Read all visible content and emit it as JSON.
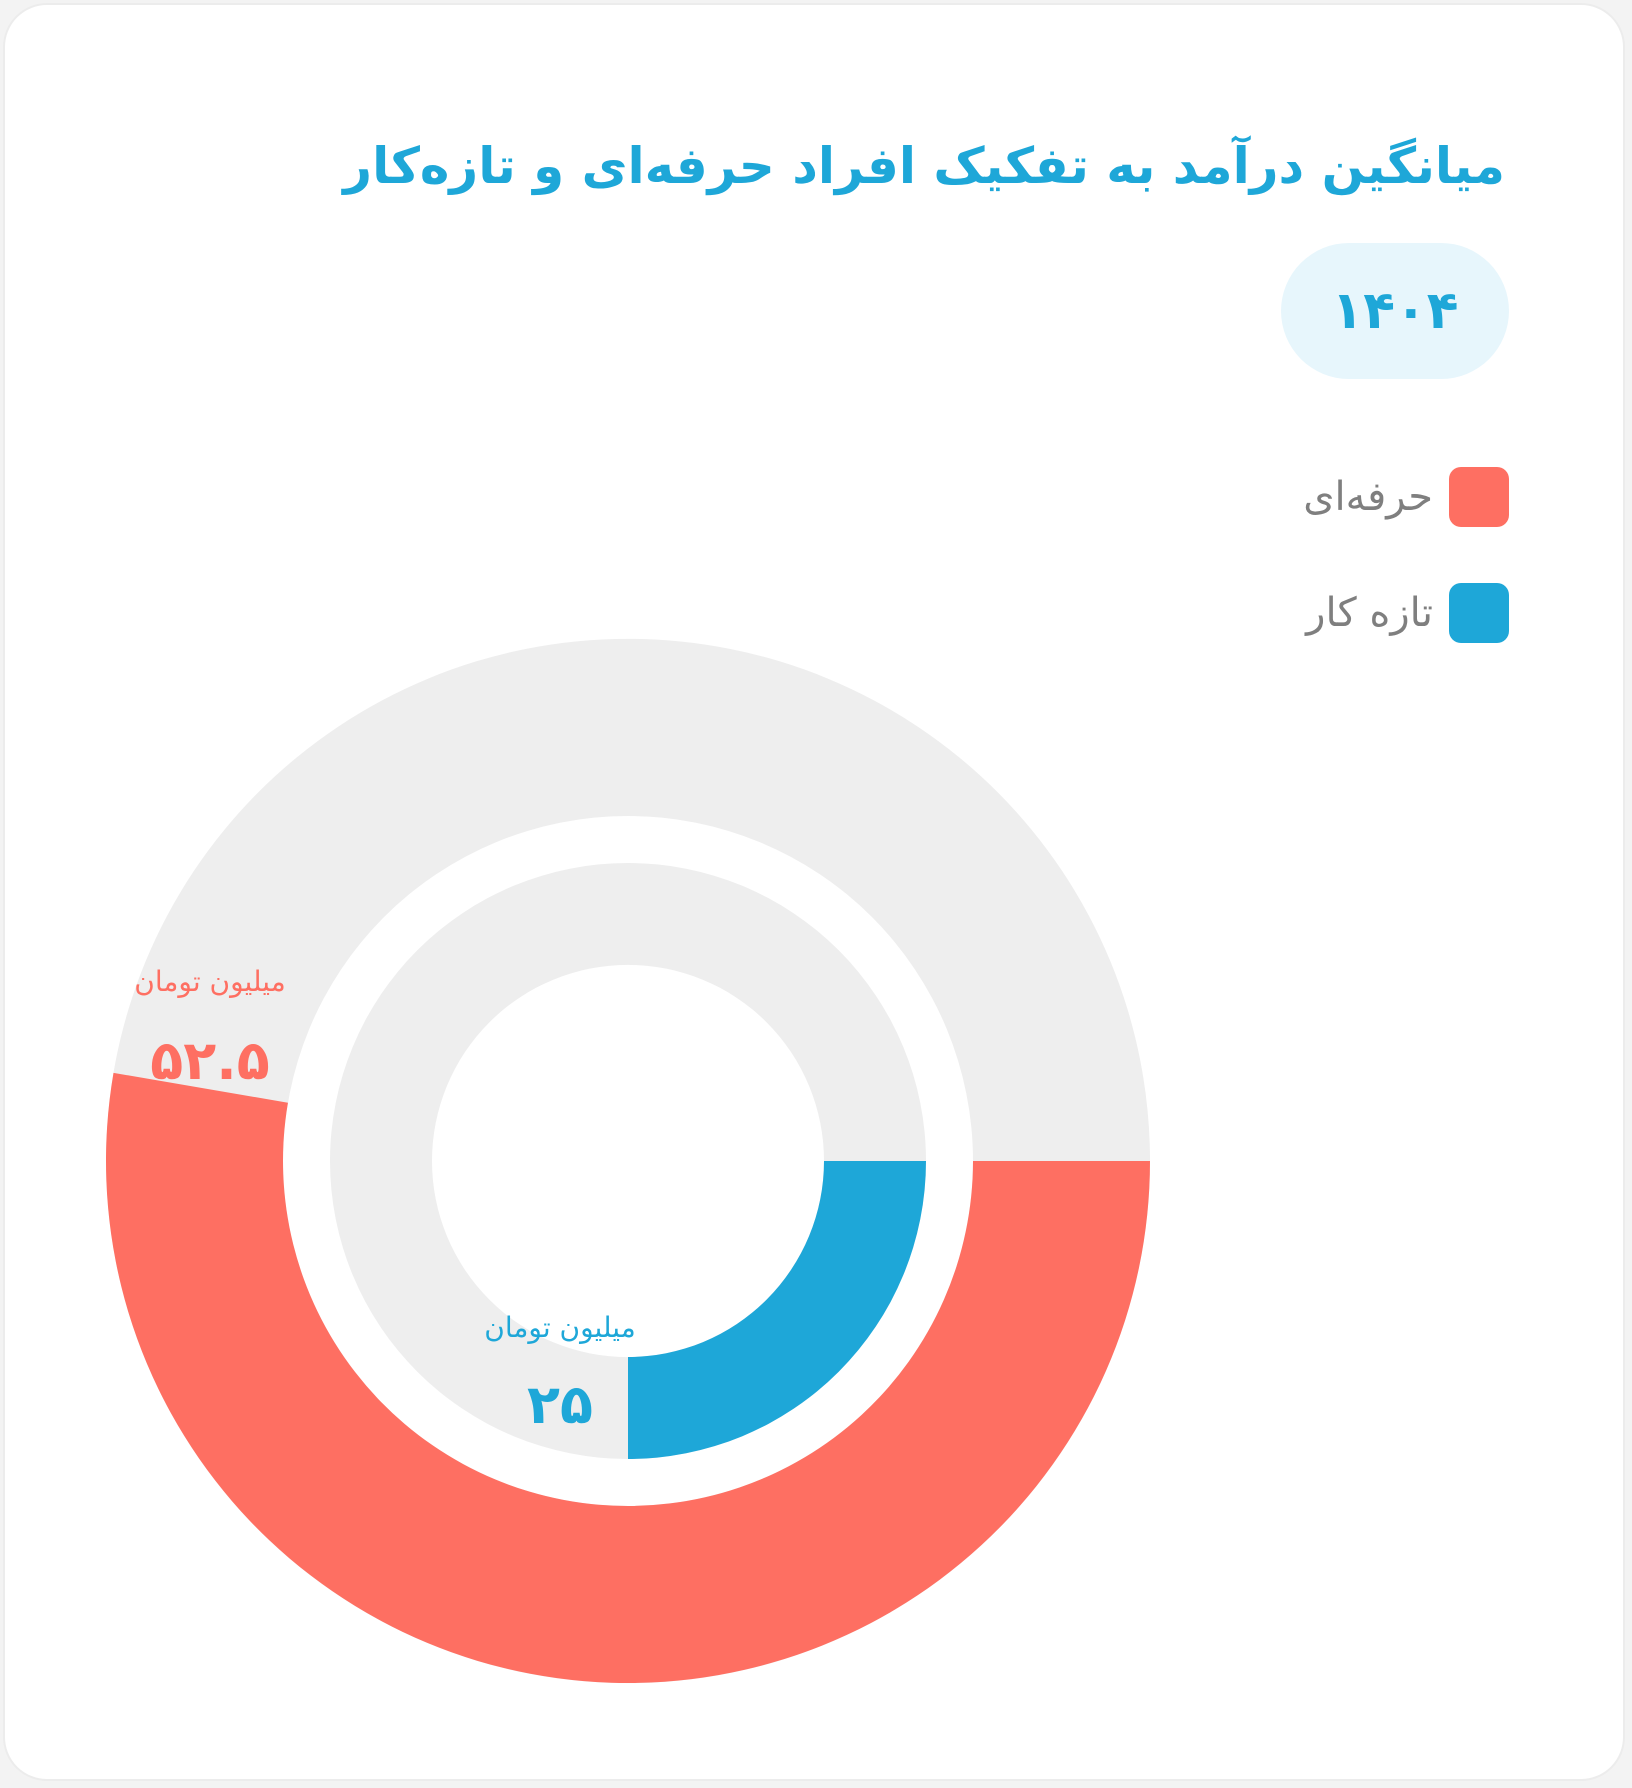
{
  "title": "میانگین درآمد به تفکیک افراد حرفه‌ای و تازه‌کار",
  "year_selector": {
    "value": "۱۴۰۴"
  },
  "legend": [
    {
      "label": "حرفه‌ای",
      "color": "#fe6f62"
    },
    {
      "label": "تازه کار",
      "color": "#1ea7d8"
    }
  ],
  "chart_data": {
    "type": "pie",
    "variant": "nested-donut",
    "title": "میانگین درآمد به تفکیک افراد حرفه‌ای و تازه‌کار",
    "period": "۱۴۰۴",
    "unit": "میلیون تومان",
    "track_color": "#eeeeee",
    "series": [
      {
        "name": "حرفه‌ای",
        "ring": "outer",
        "value": 52.5,
        "fraction": 0.527,
        "color": "#fe6f62",
        "value_label": "۵۲.۵",
        "unit_label": "میلیون تومان"
      },
      {
        "name": "تازه کار",
        "ring": "inner",
        "value": 25,
        "fraction": 0.25,
        "color": "#1ea7d8",
        "value_label": "۲۵",
        "unit_label": "میلیون تومان"
      }
    ]
  }
}
